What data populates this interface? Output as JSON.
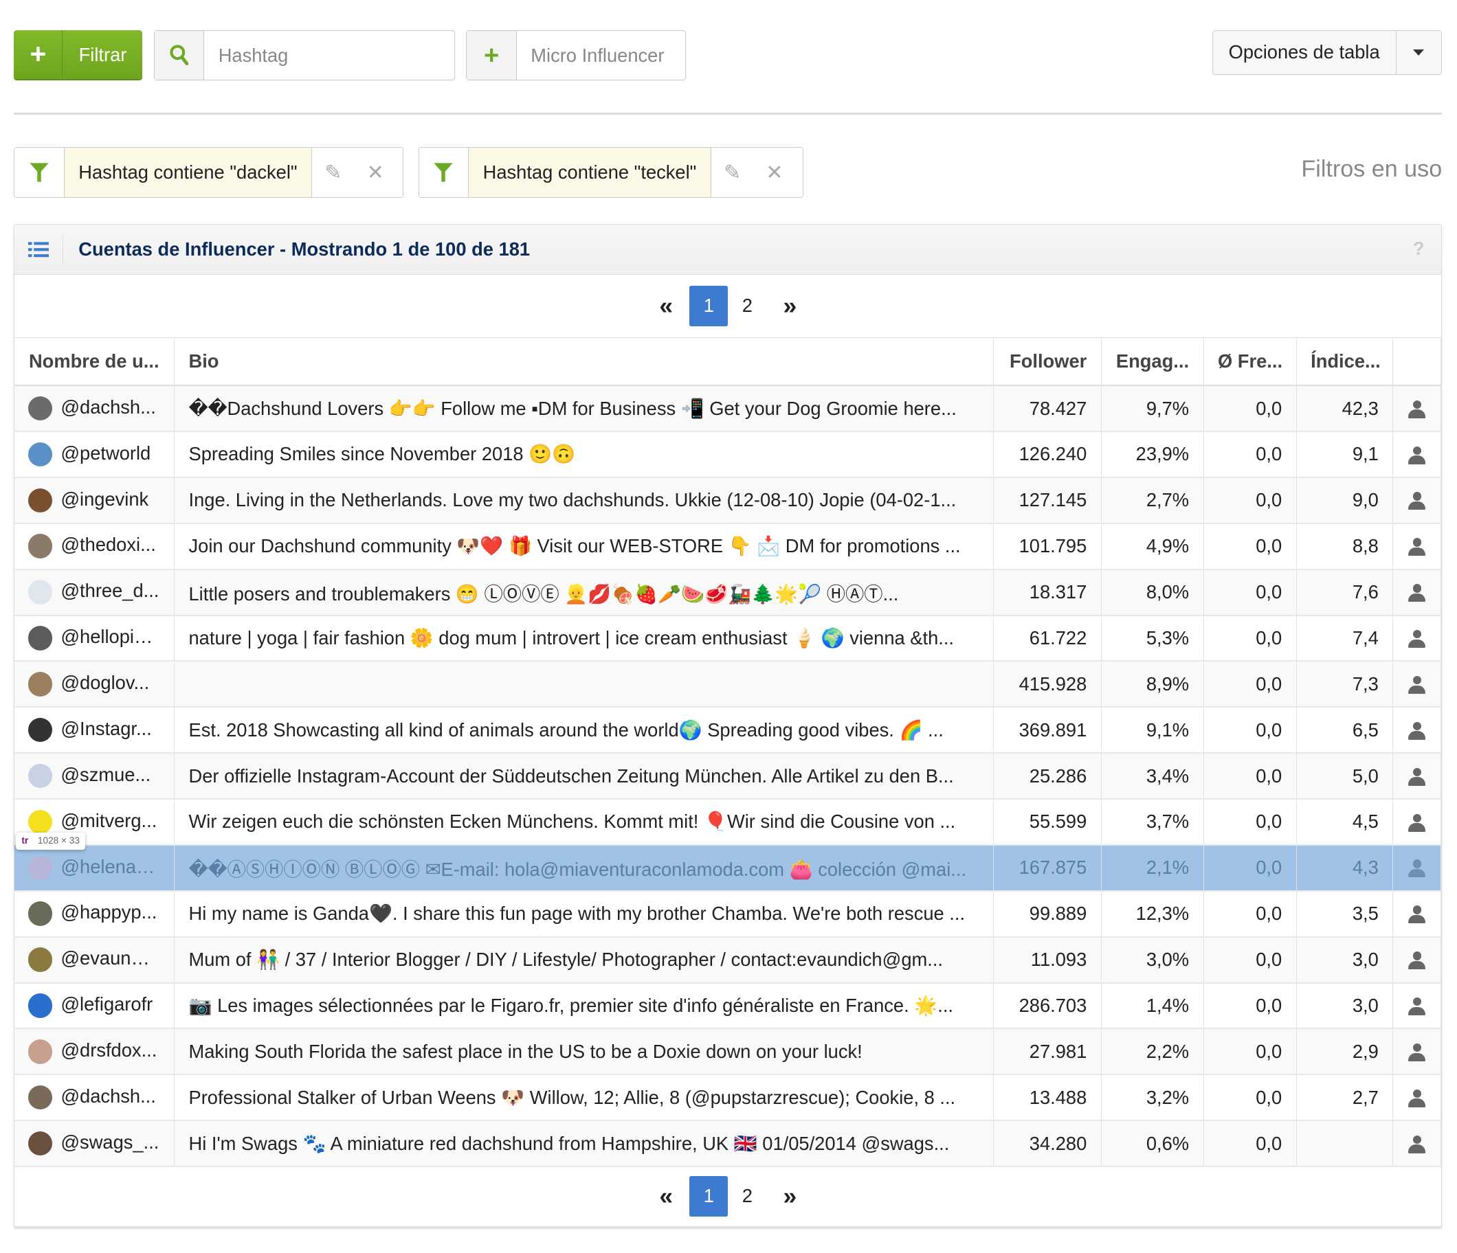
{
  "toolbar": {
    "filter_button": "Filtrar",
    "hashtag_placeholder": "Hashtag",
    "micro_placeholder": "Micro Influencer",
    "table_options": "Opciones de tabla"
  },
  "filters": {
    "items": [
      {
        "label": "Hashtag contiene \"dackel\""
      },
      {
        "label": "Hashtag contiene \"teckel\""
      }
    ],
    "in_use_label": "Filtros en uso"
  },
  "panel": {
    "title": "Cuentas de Influencer - Mostrando 1 de 100 de 181",
    "help": "?"
  },
  "pagination": {
    "first": "«",
    "pages": [
      "1",
      "2"
    ],
    "current": "1",
    "last": "»"
  },
  "table": {
    "columns": [
      "Nombre de u...",
      "Bio",
      "Follower",
      "Engag...",
      "Ø Fre...",
      "Índice..."
    ],
    "rows": [
      {
        "user": "@dachsh...",
        "bio": "��Dachshund Lovers 👉👉 Follow me ▪DM for Business 📲 Get your Dog Groomie here...",
        "followers": "78.427",
        "engagement": "9,7%",
        "freq": "0,0",
        "index": "42,3"
      },
      {
        "user": "@petworld",
        "bio": "Spreading Smiles since November 2018 🙂🙃",
        "followers": "126.240",
        "engagement": "23,9%",
        "freq": "0,0",
        "index": "9,1"
      },
      {
        "user": "@ingevink",
        "bio": "Inge. Living in the Netherlands. Love my two dachshunds. Ukkie (12-08-10) Jopie (04-02-1...",
        "followers": "127.145",
        "engagement": "2,7%",
        "freq": "0,0",
        "index": "9,0"
      },
      {
        "user": "@thedoxi...",
        "bio": "Join our Dachshund community 🐶❤️ 🎁 Visit our WEB-STORE 👇 📩 DM for promotions ...",
        "followers": "101.795",
        "engagement": "4,9%",
        "freq": "0,0",
        "index": "8,8"
      },
      {
        "user": "@three_d...",
        "bio": "Little posers and troublemakers 😁 ⓁⓄⓋⒺ 👱💋🍖🍓🥕🍉🥩🚂🌲🌟🎾 ⒽⒶⓉ...",
        "followers": "18.317",
        "engagement": "8,0%",
        "freq": "0,0",
        "index": "7,6"
      },
      {
        "user": "@hellopip...",
        "bio": "nature | yoga | fair fashion 🌼 dog mum | introvert | ice cream enthusiast 🍦 🌍 vienna &th...",
        "followers": "61.722",
        "engagement": "5,3%",
        "freq": "0,0",
        "index": "7,4"
      },
      {
        "user": "@doglov...",
        "bio": "",
        "followers": "415.928",
        "engagement": "8,9%",
        "freq": "0,0",
        "index": "7,3"
      },
      {
        "user": "@Instagr...",
        "bio": "Est. 2018 Showcasting all kind of animals around the world🌍 Spreading good vibes. 🌈 ...",
        "followers": "369.891",
        "engagement": "9,1%",
        "freq": "0,0",
        "index": "6,5"
      },
      {
        "user": "@szmue...",
        "bio": "Der offizielle Instagram-Account der Süddeutschen Zeitung München. Alle Artikel zu den B...",
        "followers": "25.286",
        "engagement": "3,4%",
        "freq": "0,0",
        "index": "5,0"
      },
      {
        "user": "@mitverg...",
        "bio": "Wir zeigen euch die schönsten Ecken Münchens. Kommt mit! 🎈Wir sind die Cousine von ...",
        "followers": "55.599",
        "engagement": "3,7%",
        "freq": "0,0",
        "index": "4,5"
      },
      {
        "user": "@helenac...",
        "bio": "��ⒶⓈⒽⒾⓄⓃ ⒷⓁⓄⒼ ✉E-mail: hola@miaventuraconlamoda.com 👛 colección @mai...",
        "followers": "167.875",
        "engagement": "2,1%",
        "freq": "0,0",
        "index": "4,3"
      },
      {
        "user": "@happyp...",
        "bio": "Hi my name is Ganda🖤. I share this fun page with my brother Chamba. We're both rescue ...",
        "followers": "99.889",
        "engagement": "12,3%",
        "freq": "0,0",
        "index": "3,5"
      },
      {
        "user": "@evaundi...",
        "bio": "Mum of 👫 / 37 / Interior Blogger / DIY / Lifestyle/ Photographer / contact:evaundich@gm...",
        "followers": "11.093",
        "engagement": "3,0%",
        "freq": "0,0",
        "index": "3,0"
      },
      {
        "user": "@lefigarofr",
        "bio": "📷 Les images sélectionnées par le Figaro.fr, premier site d'info généraliste en France. 🌟...",
        "followers": "286.703",
        "engagement": "1,4%",
        "freq": "0,0",
        "index": "3,0"
      },
      {
        "user": "@drsfdox...",
        "bio": "Making South Florida the safest place in the US to be a Doxie down on your luck!",
        "followers": "27.981",
        "engagement": "2,2%",
        "freq": "0,0",
        "index": "2,9"
      },
      {
        "user": "@dachsh...",
        "bio": "Professional Stalker of Urban Weens 🐶 Willow, 12; Allie, 8 (@pupstarzrescue); Cookie, 8 ...",
        "followers": "13.488",
        "engagement": "3,2%",
        "freq": "0,0",
        "index": "2,7"
      },
      {
        "user": "@swags_...",
        "bio": "Hi I'm Swags 🐾 A miniature red dachshund from Hampshire, UK 🇬🇧 01/05/2014 @swags...",
        "followers": "34.280",
        "engagement": "0,6%",
        "freq": "0,0",
        "index": ""
      }
    ],
    "selected_row": 10
  },
  "devtools_tooltip": {
    "tag": "tr",
    "size": "1028 × 33"
  },
  "colors": {
    "accent_green": "#74ad22",
    "selected_row": "#9fc2e6",
    "pager_active": "#3d7bd0",
    "title": "#0c2a5a"
  }
}
